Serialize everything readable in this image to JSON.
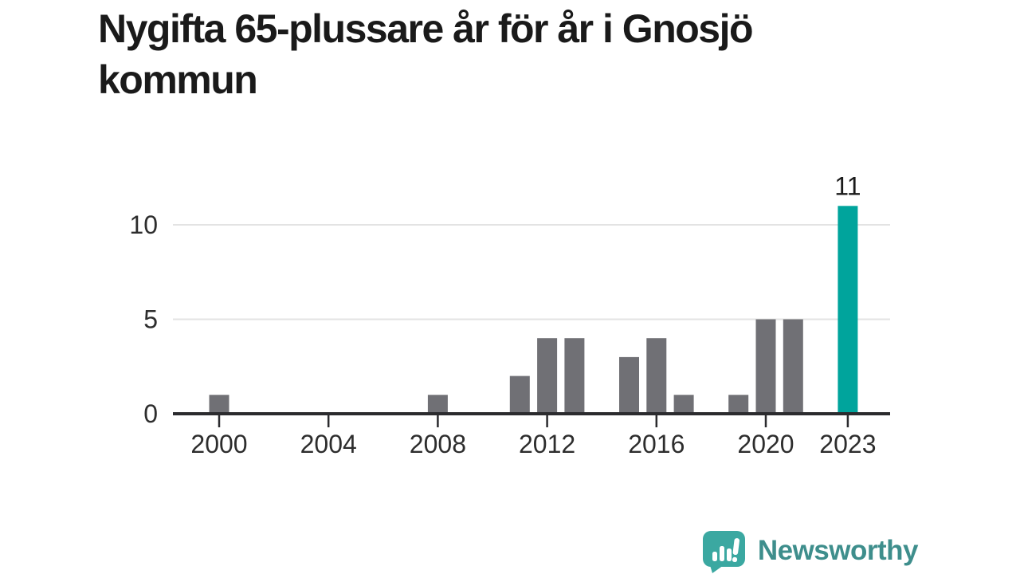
{
  "title": "Nygifta 65-plussare år för år i Gnosjö kommun",
  "chart_data": {
    "type": "bar",
    "title": "Nygifta 65-plussare år för år i Gnosjö kommun",
    "xlabel": "",
    "ylabel": "",
    "x": [
      2000,
      2001,
      2002,
      2003,
      2004,
      2005,
      2006,
      2007,
      2008,
      2009,
      2010,
      2011,
      2012,
      2013,
      2014,
      2015,
      2016,
      2017,
      2018,
      2019,
      2020,
      2021,
      2022,
      2023
    ],
    "values": [
      1,
      0,
      0,
      0,
      0,
      0,
      0,
      0,
      1,
      0,
      0,
      2,
      4,
      4,
      0,
      3,
      4,
      1,
      0,
      1,
      5,
      5,
      0,
      11
    ],
    "highlight_year": 2023,
    "highlight_value_label": "11",
    "x_tick_labels": [
      "2000",
      "2004",
      "2008",
      "2012",
      "2016",
      "2020",
      "2023"
    ],
    "y_tick_labels": [
      "0",
      "5",
      "10"
    ],
    "y_ticks": [
      0,
      5,
      10
    ],
    "ylim": [
      0,
      11.5
    ],
    "grid": "horizontal-light",
    "legend": "none",
    "colors": {
      "bar": "#707075",
      "highlight": "#00a49c",
      "gridline": "#e3e3e3",
      "axis": "#2b2b2e",
      "axis_label": "#2d2d2d",
      "value_label": "#1a1a1a"
    }
  },
  "branding": {
    "logo_text": "Newsworthy",
    "logo_icon": "newsworthy-speech-bubble-bar-chart-icon",
    "colors": {
      "icon": "#3ba8a1",
      "icon_glyphs": "#ffffff",
      "text": "#3e8e8c"
    }
  }
}
